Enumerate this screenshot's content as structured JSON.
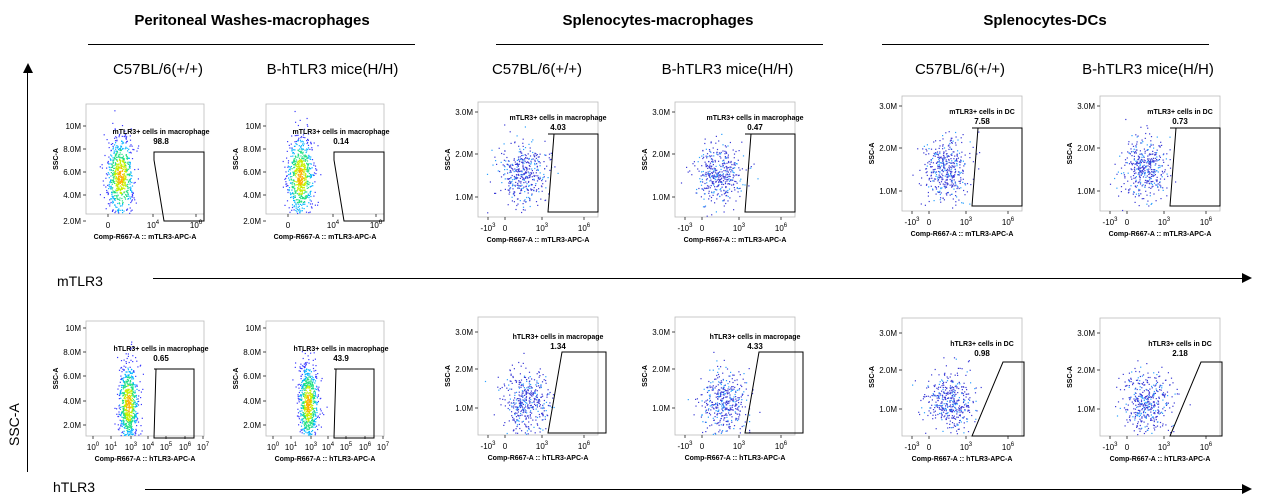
{
  "groups": [
    {
      "title": "Peritoneal Washes-macrophages"
    },
    {
      "title": "Splenocytes-macrophages"
    },
    {
      "title": "Splenocytes-DCs"
    }
  ],
  "column_labels": [
    "C57BL/6(+/+)",
    "B-hTLR3 mice(H/H)",
    "C57BL/6(+/+)",
    "B-hTLR3 mice(H/H)",
    "C57BL/6(+/+)",
    "B-hTLR3 mice(H/H)"
  ],
  "row_labels": [
    "mTLR3",
    "hTLR3"
  ],
  "y_axis_label": "SSC-A",
  "chart_data": [
    {
      "type": "scatter",
      "group": "Peritoneal Washes-macrophages",
      "strain": "C57BL/6(+/+)",
      "gate_label": "mTLR3+ cells in macrophage",
      "gate_value": "98.8",
      "xlabel": "Comp-R667-A :: mTLR3-APC-A",
      "ylabel": "SSC-A",
      "yticks": [
        "10M",
        "8.0M",
        "6.0M",
        "4.0M",
        "2.0M"
      ],
      "xticks": [
        "0",
        "10^4",
        "10^6"
      ]
    },
    {
      "type": "scatter",
      "group": "Peritoneal Washes-macrophages",
      "strain": "B-hTLR3 mice(H/H)",
      "gate_label": "mTLR3+ cells in macrophage",
      "gate_value": "0.14",
      "xlabel": "Comp-R667-A :: mTLR3-APC-A",
      "ylabel": "SSC-A",
      "yticks": [
        "10M",
        "8.0M",
        "6.0M",
        "4.0M",
        "2.0M"
      ],
      "xticks": [
        "0",
        "10^4",
        "10^6"
      ]
    },
    {
      "type": "scatter",
      "group": "Splenocytes-macrophages",
      "strain": "C57BL/6(+/+)",
      "gate_label": "mTLR3+ cells in macrophage",
      "gate_value": "4.03",
      "xlabel": "Comp-R667-A :: mTLR3-APC-A",
      "ylabel": "SSC-A",
      "yticks": [
        "3.0M",
        "2.0M",
        "1.0M"
      ],
      "xticks": [
        "-10^3",
        "0",
        "10^3",
        "10^6"
      ]
    },
    {
      "type": "scatter",
      "group": "Splenocytes-macrophages",
      "strain": "B-hTLR3 mice(H/H)",
      "gate_label": "mTLR3+ cells in macrophage",
      "gate_value": "0.47",
      "xlabel": "Comp-R667-A :: mTLR3-APC-A",
      "ylabel": "SSC-A",
      "yticks": [
        "3.0M",
        "2.0M",
        "1.0M"
      ],
      "xticks": [
        "-10^3",
        "0",
        "10^3",
        "10^6"
      ]
    },
    {
      "type": "scatter",
      "group": "Splenocytes-DCs",
      "strain": "C57BL/6(+/+)",
      "gate_label": "mTLR3+ cells in DC",
      "gate_value": "7.58",
      "xlabel": "Comp-R667-A :: mTLR3-APC-A",
      "ylabel": "SSC-A",
      "yticks": [
        "3.0M",
        "2.0M",
        "1.0M"
      ],
      "xticks": [
        "-10^3",
        "0",
        "10^3",
        "10^6"
      ]
    },
    {
      "type": "scatter",
      "group": "Splenocytes-DCs",
      "strain": "B-hTLR3 mice(H/H)",
      "gate_label": "mTLR3+ cells in DC",
      "gate_value": "0.73",
      "xlabel": "Comp-R667-A :: mTLR3-APC-A",
      "ylabel": "SSC-A",
      "yticks": [
        "3.0M",
        "2.0M",
        "1.0M"
      ],
      "xticks": [
        "-10^3",
        "0",
        "10^3",
        "10^6"
      ]
    },
    {
      "type": "scatter",
      "group": "Peritoneal Washes-macrophages",
      "strain": "C57BL/6(+/+)",
      "gate_label": "hTLR3+ cells in macrophage",
      "gate_value": "0.65",
      "xlabel": "Comp-R667-A :: hTLR3-APC-A",
      "ylabel": "SSC-A",
      "yticks": [
        "10M",
        "8.0M",
        "6.0M",
        "4.0M",
        "2.0M"
      ],
      "xticks": [
        "10^0",
        "10^1",
        "10^3",
        "10^4",
        "10^5",
        "10^6",
        "10^7"
      ]
    },
    {
      "type": "scatter",
      "group": "Peritoneal Washes-macrophages",
      "strain": "B-hTLR3 mice(H/H)",
      "gate_label": "hTLR3+ cells in macrophage",
      "gate_value": "43.9",
      "xlabel": "Comp-R667-A :: hTLR3-APC-A",
      "ylabel": "SSC-A",
      "yticks": [
        "10M",
        "8.0M",
        "6.0M",
        "4.0M",
        "2.0M"
      ],
      "xticks": [
        "10^0",
        "10^1",
        "10^3",
        "10^4",
        "10^5",
        "10^6",
        "10^7"
      ]
    },
    {
      "type": "scatter",
      "group": "Splenocytes-macrophages",
      "strain": "C57BL/6(+/+)",
      "gate_label": "hTLR3+ cells in macropage",
      "gate_value": "1.34",
      "xlabel": "Comp-R667-A :: hTLR3-APC-A",
      "ylabel": "SSC-A",
      "yticks": [
        "3.0M",
        "2.0M",
        "1.0M"
      ],
      "xticks": [
        "-10^3",
        "0",
        "10^3",
        "10^6"
      ]
    },
    {
      "type": "scatter",
      "group": "Splenocytes-macrophages",
      "strain": "B-hTLR3 mice(H/H)",
      "gate_label": "hTLR3+ cells in macropage",
      "gate_value": "4.33",
      "xlabel": "Comp-R667-A :: hTLR3-APC-A",
      "ylabel": "SSC-A",
      "yticks": [
        "3.0M",
        "2.0M",
        "1.0M"
      ],
      "xticks": [
        "-10^3",
        "0",
        "10^3",
        "10^6"
      ]
    },
    {
      "type": "scatter",
      "group": "Splenocytes-DCs",
      "strain": "C57BL/6(+/+)",
      "gate_label": "hTLR3+ cells in DC",
      "gate_value": "0.98",
      "xlabel": "Comp-R667-A :: hTLR3-APC-A",
      "ylabel": "SSC-A",
      "yticks": [
        "3.0M",
        "2.0M",
        "1.0M"
      ],
      "xticks": [
        "-10^3",
        "0",
        "10^3",
        "10^6"
      ]
    },
    {
      "type": "scatter",
      "group": "Splenocytes-DCs",
      "strain": "B-hTLR3 mice(H/H)",
      "gate_label": "hTLR3+ cells in DC",
      "gate_value": "2.18",
      "xlabel": "Comp-R667-A :: hTLR3-APC-A",
      "ylabel": "SSC-A",
      "yticks": [
        "3.0M",
        "2.0M",
        "1.0M"
      ],
      "xticks": [
        "-10^3",
        "0",
        "10^3",
        "10^6"
      ]
    }
  ]
}
